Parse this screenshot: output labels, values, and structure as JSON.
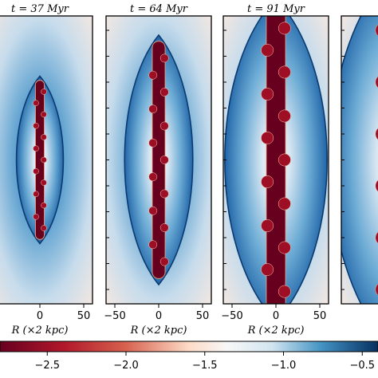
{
  "chart_data": {
    "type": "heatmap",
    "panels": [
      {
        "title": "t = 37 Myr",
        "xlabel": "R (×2 kpc)",
        "xticks": [
          0,
          50
        ],
        "jet_half_length_frac": 0.57,
        "cocoon_half_width_frac": 0.22
      },
      {
        "title": "t = 64 Myr",
        "xlabel": "R (×2 kpc)",
        "xticks": [
          -50,
          0,
          50
        ],
        "jet_half_length_frac": 0.85,
        "cocoon_half_width_frac": 0.32
      },
      {
        "title": "t = 91 Myr",
        "xlabel": "R (×2 kpc)",
        "xticks": [
          -50,
          0,
          50
        ],
        "jet_half_length_frac": 1.1,
        "cocoon_half_width_frac": 0.48
      },
      {
        "title": "",
        "xlabel": "",
        "xticks": [],
        "jet_half_length_frac": 1.3,
        "cocoon_half_width_frac": 0.6
      }
    ],
    "xlim": [
      -60,
      60
    ],
    "colorbar": {
      "ticks": [
        -2.5,
        -2.0,
        -1.5,
        -1.0,
        -0.5
      ],
      "tick_labels": [
        "−2.5",
        "−2.0",
        "−1.5",
        "−1.0",
        "−0.5"
      ],
      "range": [
        -2.8,
        -0.4
      ],
      "colormap": "RdBu"
    },
    "grid": false
  },
  "colors": {
    "dark_red": "#67001f",
    "red": "#d6604d",
    "light_red": "#fddbc7",
    "white": "#f7f7f7",
    "light_blue": "#d1e5f0",
    "blue": "#4393c3",
    "dark_blue": "#053061"
  }
}
